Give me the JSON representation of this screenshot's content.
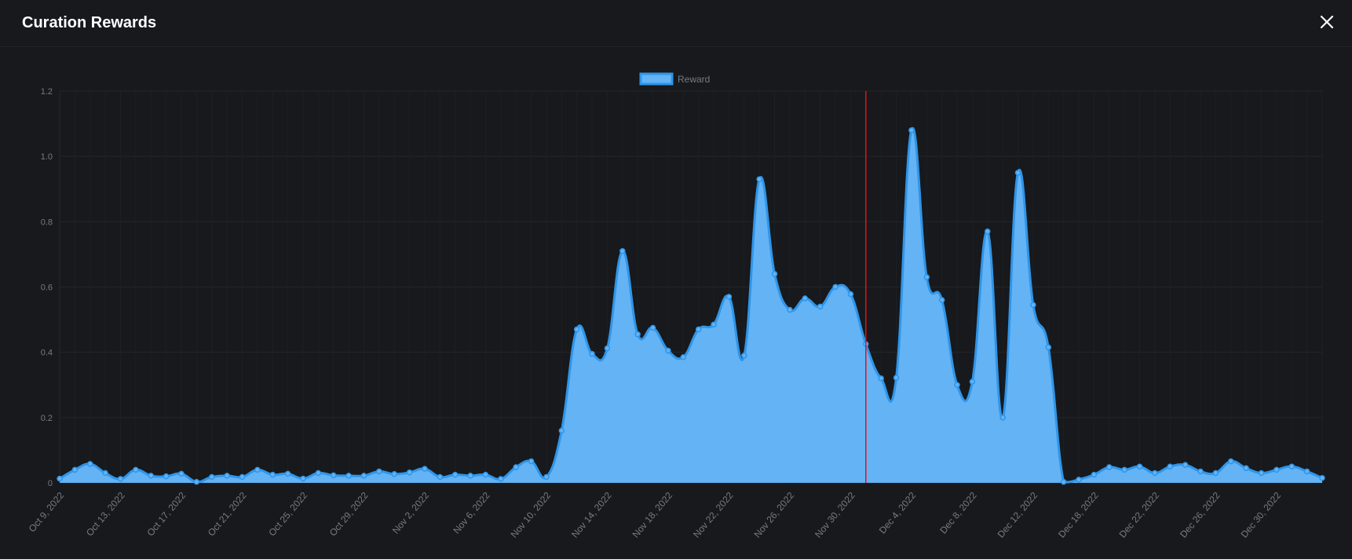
{
  "header": {
    "title": "Curation Rewards",
    "close_icon": "close-icon"
  },
  "colors": {
    "fill": "#63b3f5",
    "line": "#2f95e8",
    "marker_line": "#e8101a",
    "grid": "#24272b",
    "tick": "#777b80"
  },
  "chart_data": {
    "type": "area",
    "legend": [
      "Reward"
    ],
    "legend_position": "top-center",
    "ylim": [
      0,
      1.2
    ],
    "yticks": [
      "0",
      "0.2",
      "0.4",
      "0.6",
      "0.8",
      "1.0",
      "1.2"
    ],
    "xtick_labels": [
      "Oct 9, 2022",
      "Oct 13, 2022",
      "Oct 17, 2022",
      "Oct 21, 2022",
      "Oct 25, 2022",
      "Oct 29, 2022",
      "Nov 2, 2022",
      "Nov 6, 2022",
      "Nov 10, 2022",
      "Nov 14, 2022",
      "Nov 18, 2022",
      "Nov 22, 2022",
      "Nov 26, 2022",
      "Nov 30, 2022",
      "Dec 4, 2022",
      "Dec 8, 2022",
      "Dec 12, 2022",
      "Dec 18, 2022",
      "Dec 22, 2022",
      "Dec 26, 2022",
      "Dec 30, 2022"
    ],
    "vertical_marker_date": "Dec 1, 2022",
    "grid": true,
    "series": [
      {
        "name": "Reward",
        "points": [
          [
            "2022-10-09",
            0.013
          ],
          [
            "2022-10-10",
            0.04
          ],
          [
            "2022-10-11",
            0.058
          ],
          [
            "2022-10-12",
            0.03
          ],
          [
            "2022-10-13",
            0.012
          ],
          [
            "2022-10-14",
            0.04
          ],
          [
            "2022-10-15",
            0.022
          ],
          [
            "2022-10-16",
            0.02
          ],
          [
            "2022-10-17",
            0.028
          ],
          [
            "2022-10-18",
            0.003
          ],
          [
            "2022-10-19",
            0.018
          ],
          [
            "2022-10-20",
            0.022
          ],
          [
            "2022-10-21",
            0.018
          ],
          [
            "2022-10-22",
            0.04
          ],
          [
            "2022-10-23",
            0.025
          ],
          [
            "2022-10-24",
            0.028
          ],
          [
            "2022-10-25",
            0.013
          ],
          [
            "2022-10-26",
            0.03
          ],
          [
            "2022-10-27",
            0.023
          ],
          [
            "2022-10-28",
            0.022
          ],
          [
            "2022-10-29",
            0.022
          ],
          [
            "2022-10-30",
            0.035
          ],
          [
            "2022-10-31",
            0.027
          ],
          [
            "2022-11-01",
            0.032
          ],
          [
            "2022-11-02",
            0.043
          ],
          [
            "2022-11-03",
            0.018
          ],
          [
            "2022-11-04",
            0.025
          ],
          [
            "2022-11-05",
            0.022
          ],
          [
            "2022-11-06",
            0.025
          ],
          [
            "2022-11-07",
            0.012
          ],
          [
            "2022-11-08",
            0.048
          ],
          [
            "2022-11-09",
            0.066
          ],
          [
            "2022-11-10",
            0.018
          ],
          [
            "2022-11-11",
            0.16
          ],
          [
            "2022-11-12",
            0.47
          ],
          [
            "2022-11-13",
            0.395
          ],
          [
            "2022-11-14",
            0.412
          ],
          [
            "2022-11-15",
            0.71
          ],
          [
            "2022-11-16",
            0.455
          ],
          [
            "2022-11-17",
            0.475
          ],
          [
            "2022-11-18",
            0.405
          ],
          [
            "2022-11-19",
            0.385
          ],
          [
            "2022-11-20",
            0.47
          ],
          [
            "2022-11-21",
            0.485
          ],
          [
            "2022-11-22",
            0.57
          ],
          [
            "2022-11-23",
            0.39
          ],
          [
            "2022-11-24",
            0.93
          ],
          [
            "2022-11-25",
            0.64
          ],
          [
            "2022-11-26",
            0.53
          ],
          [
            "2022-11-27",
            0.565
          ],
          [
            "2022-11-28",
            0.54
          ],
          [
            "2022-11-29",
            0.6
          ],
          [
            "2022-11-30",
            0.578
          ],
          [
            "2022-12-01",
            0.425
          ],
          [
            "2022-12-02",
            0.32
          ],
          [
            "2022-12-03",
            0.322
          ],
          [
            "2022-12-04",
            1.08
          ],
          [
            "2022-12-05",
            0.63
          ],
          [
            "2022-12-06",
            0.56
          ],
          [
            "2022-12-07",
            0.3
          ],
          [
            "2022-12-08",
            0.31
          ],
          [
            "2022-12-09",
            0.77
          ],
          [
            "2022-12-10",
            0.2
          ],
          [
            "2022-12-11",
            0.95
          ],
          [
            "2022-12-12",
            0.545
          ],
          [
            "2022-12-13",
            0.415
          ],
          [
            "2022-12-14",
            0.003
          ],
          [
            "2022-12-15",
            0.01
          ],
          [
            "2022-12-16",
            0.025
          ],
          [
            "2022-12-17",
            0.048
          ],
          [
            "2022-12-18",
            0.04
          ],
          [
            "2022-12-19",
            0.05
          ],
          [
            "2022-12-20",
            0.03
          ],
          [
            "2022-12-21",
            0.05
          ],
          [
            "2022-12-22",
            0.055
          ],
          [
            "2022-12-23",
            0.035
          ],
          [
            "2022-12-24",
            0.03
          ],
          [
            "2022-12-25",
            0.066
          ],
          [
            "2022-12-26",
            0.045
          ],
          [
            "2022-12-27",
            0.03
          ],
          [
            "2022-12-28",
            0.04
          ],
          [
            "2022-12-29",
            0.05
          ],
          [
            "2022-12-30",
            0.035
          ],
          [
            "2022-12-31",
            0.015
          ]
        ]
      }
    ]
  }
}
